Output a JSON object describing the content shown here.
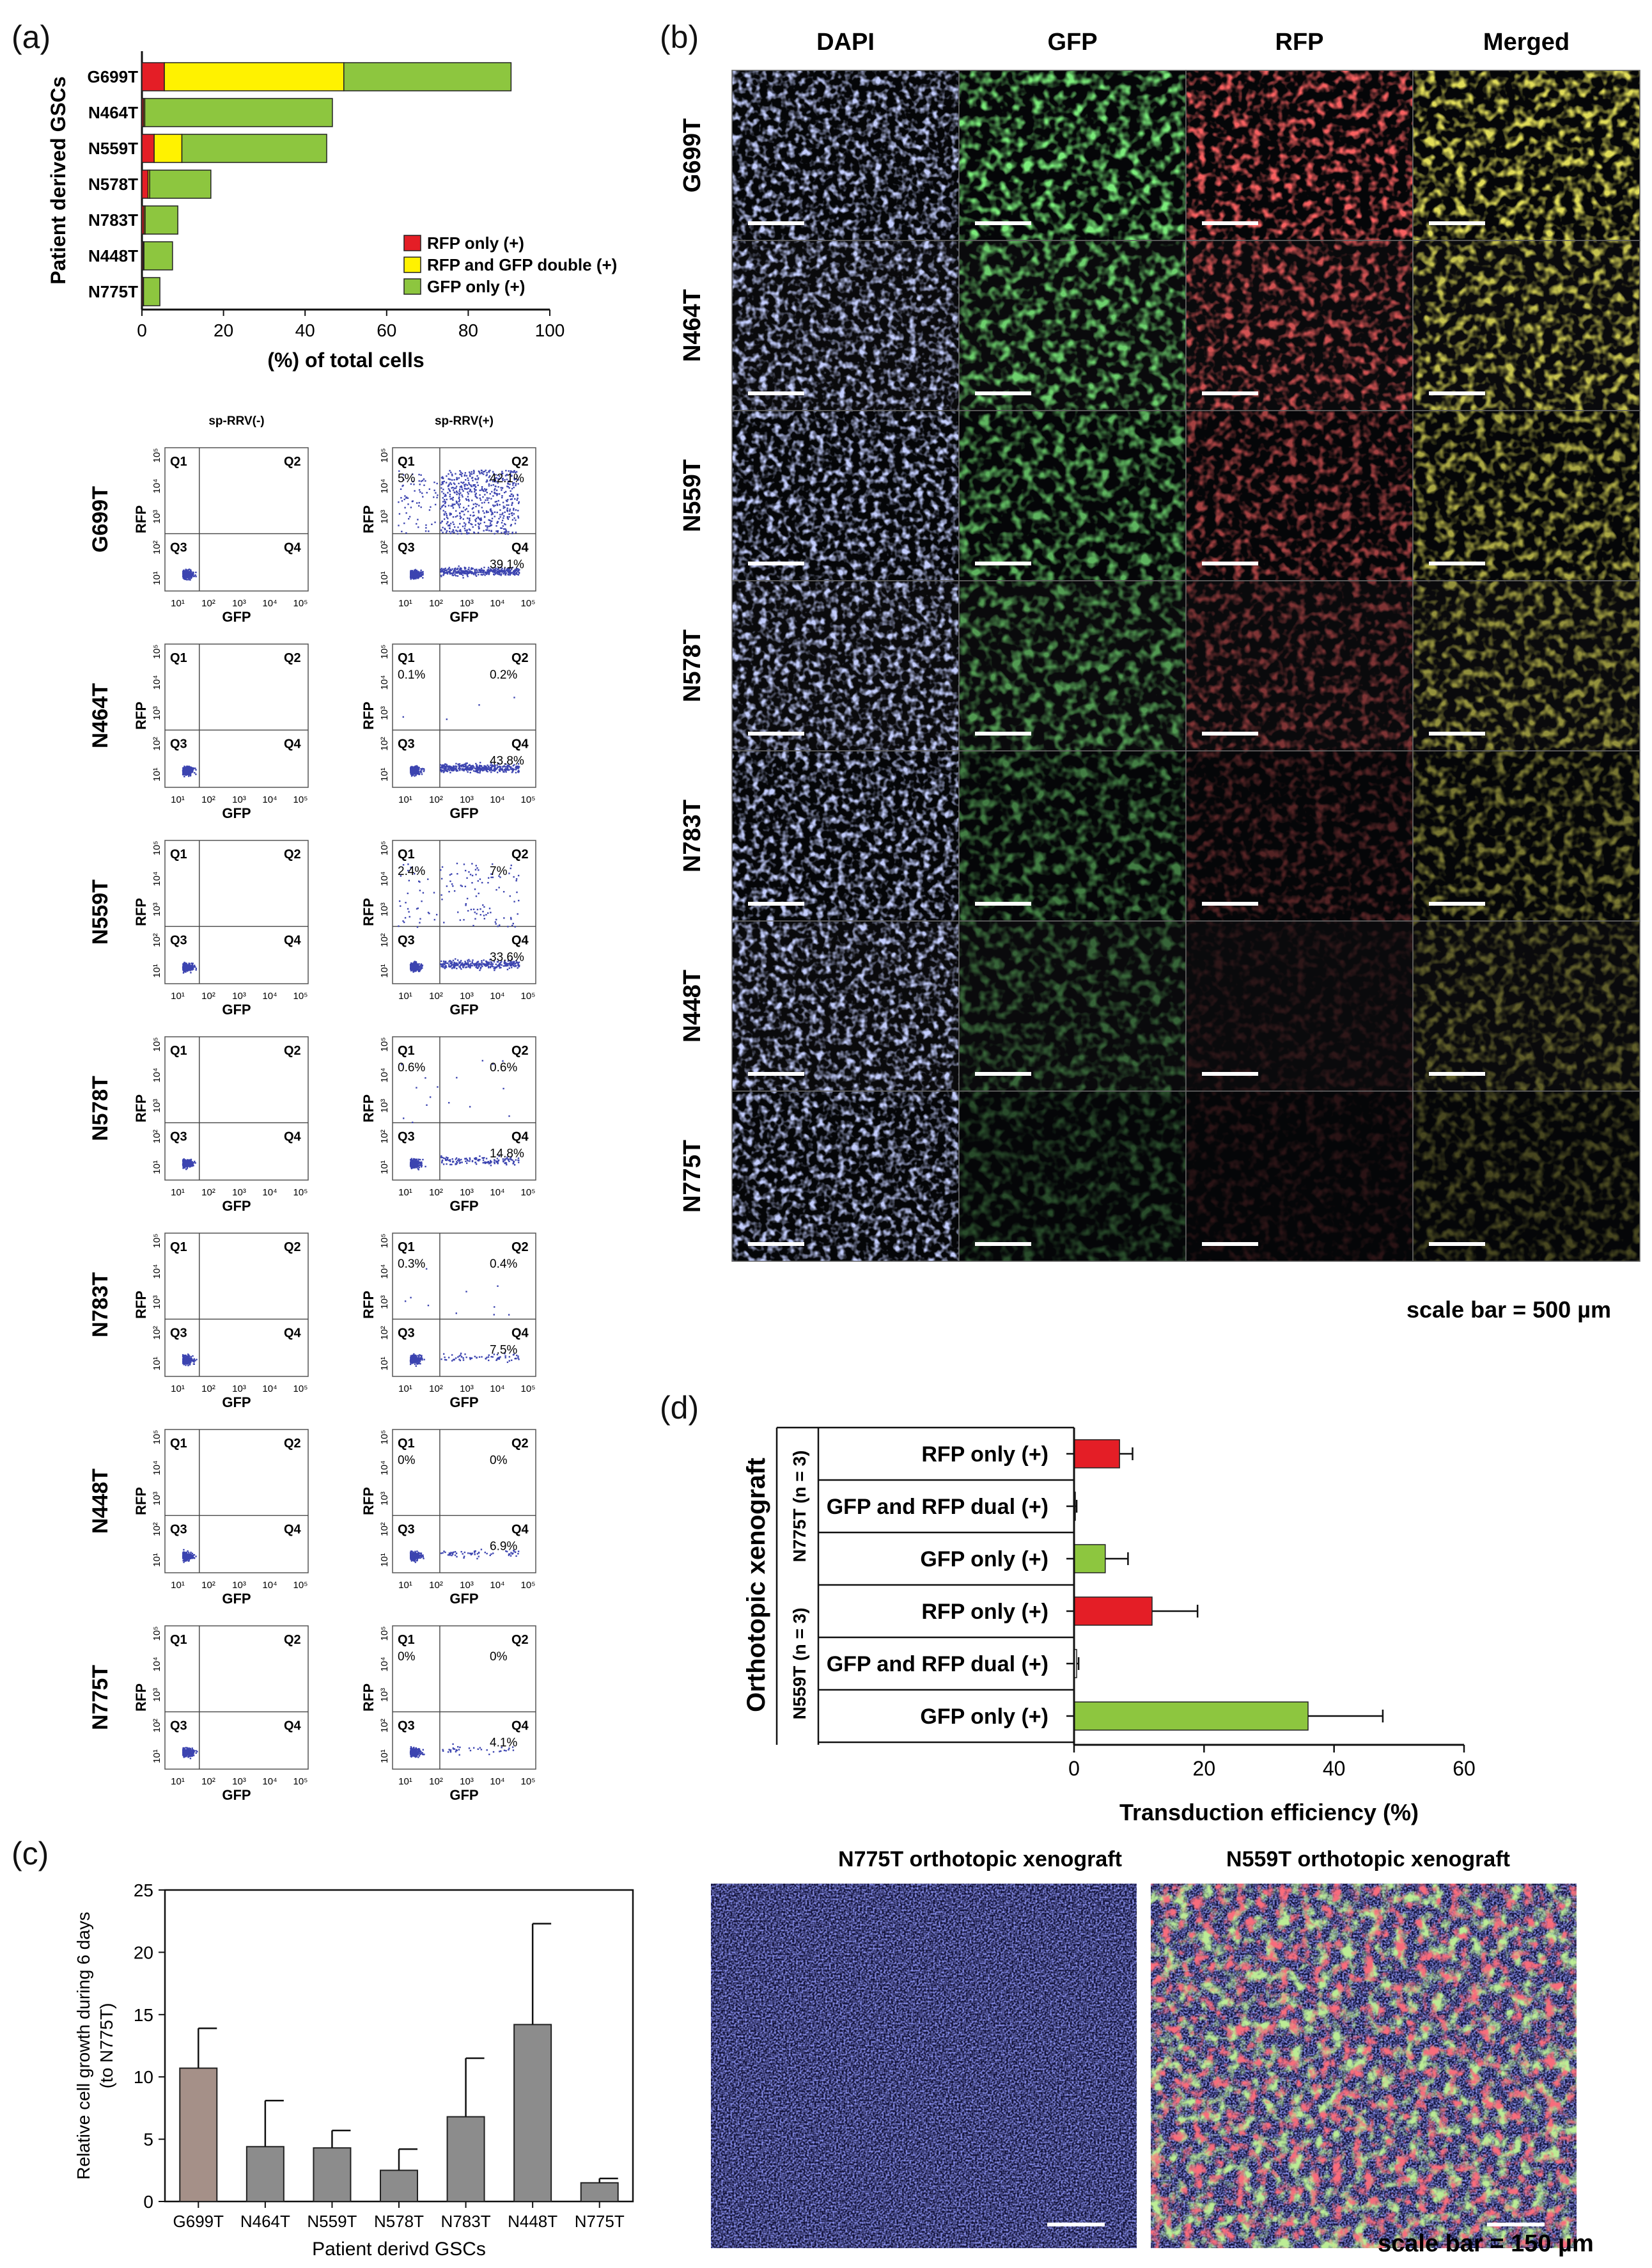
{
  "panels": {
    "a": "(a)",
    "b": "(b)",
    "c": "(c)",
    "d": "(d)"
  },
  "colors": {
    "rfp_only": "#e41e26",
    "double": "#fff200",
    "gfp_only": "#8dc63f",
    "grey_bar": "#8c8c8c",
    "g699_bar": "#a59088",
    "dot": "#3c44b0"
  },
  "chart_data": [
    {
      "type": "bar",
      "orientation": "horizontal",
      "stacked": true,
      "ylabel": "Patient derived GSCs",
      "xlabel": "(%) of total cells",
      "xlim": [
        0,
        100
      ],
      "xticks": [
        0,
        20,
        40,
        60,
        80,
        100
      ],
      "categories": [
        "G699T",
        "N464T",
        "N559T",
        "N578T",
        "N783T",
        "N448T",
        "N775T"
      ],
      "series": [
        {
          "name": "RFP only (+)",
          "values": [
            5.5,
            0.4,
            3.0,
            1.5,
            0.5,
            0.3,
            0.3
          ]
        },
        {
          "name": "RFP and GFP double  (+)",
          "values": [
            44.0,
            0.3,
            6.8,
            0.4,
            0.3,
            0.2,
            0.1
          ]
        },
        {
          "name": "GFP only (+)",
          "values": [
            41.0,
            46.0,
            35.5,
            15.0,
            8.0,
            7.0,
            4.0
          ]
        }
      ],
      "legend_position": "bottom-right"
    },
    {
      "type": "scatter",
      "subtype": "flow-cytometry-grid",
      "column_titles": [
        "sp-RRV(-)",
        "sp-RRV(+)"
      ],
      "xlabel": "GFP",
      "ylabel": "RFP",
      "axis_ticks": [
        "10¹",
        "10²",
        "10³",
        "10⁴",
        "10⁵"
      ],
      "quadrants": [
        "Q1",
        "Q2",
        "Q3",
        "Q4"
      ],
      "rows": [
        {
          "name": "G699T",
          "positive": {
            "Q1": "5%",
            "Q2": "42.1%",
            "Q3": "",
            "Q4": "39.1%"
          }
        },
        {
          "name": "N464T",
          "positive": {
            "Q1": "0.1%",
            "Q2": "0.2%",
            "Q3": "",
            "Q4": "43.8%"
          }
        },
        {
          "name": "N559T",
          "positive": {
            "Q1": "2.4%",
            "Q2": "7%",
            "Q3": "",
            "Q4": "33.6%"
          }
        },
        {
          "name": "N578T",
          "positive": {
            "Q1": "0.6%",
            "Q2": "0.6%",
            "Q3": "",
            "Q4": "14.8%"
          }
        },
        {
          "name": "N783T",
          "positive": {
            "Q1": "0.3%",
            "Q2": "0.4%",
            "Q3": "",
            "Q4": "7.5%"
          }
        },
        {
          "name": "N448T",
          "positive": {
            "Q1": "0%",
            "Q2": "0%",
            "Q3": "",
            "Q4": "6.9%"
          }
        },
        {
          "name": "N775T",
          "positive": {
            "Q1": "0%",
            "Q2": "0%",
            "Q3": "",
            "Q4": "4.1%"
          }
        }
      ]
    },
    {
      "type": "bar",
      "ylabel": "Relative cell growth during 6 days (to N775T)",
      "xlabel": "Patient derivd GSCs",
      "ylim": [
        0,
        25
      ],
      "yticks": [
        0,
        5,
        10,
        15,
        20,
        25
      ],
      "categories": [
        "G699T",
        "N464T",
        "N559T",
        "N578T",
        "N783T",
        "N448T",
        "N775T"
      ],
      "values": [
        10.7,
        4.4,
        4.3,
        2.5,
        6.8,
        14.2,
        1.5
      ],
      "errors": [
        3.2,
        3.7,
        1.4,
        1.7,
        4.7,
        8.1,
        0.35
      ]
    },
    {
      "type": "bar",
      "orientation": "horizontal",
      "ylabel": "Orthotopic xenograft",
      "xlabel": "Transduction efficiency (%)",
      "xlim": [
        0,
        60
      ],
      "xticks": [
        0,
        20,
        40,
        60
      ],
      "groups": [
        {
          "name": "N775T (n = 3)",
          "categories": [
            "RFP only (+)",
            "GFP and RFP dual (+)",
            "GFP only (+)"
          ],
          "values": [
            7,
            0.2,
            4.8
          ],
          "errors": [
            2.0,
            0.2,
            3.5
          ]
        },
        {
          "name": "N559T (n = 3)",
          "categories": [
            "RFP only (+)",
            "GFP and RFP dual (+)",
            "GFP only (+)"
          ],
          "values": [
            12,
            0.4,
            36
          ],
          "errors": [
            7.0,
            0.3,
            11.5
          ]
        }
      ]
    }
  ],
  "micro_b": {
    "columns": [
      "DAPI",
      "GFP",
      "RFP",
      "Merged"
    ],
    "rows": [
      "G699T",
      "N464T",
      "N559T",
      "N578T",
      "N783T",
      "N448T",
      "N775T"
    ],
    "scale_text": "scale bar = 500 µm"
  },
  "micro_x": {
    "titles": [
      "N775T orthotopic xenograft",
      "N559T orthotopic xenograft"
    ],
    "scale_text": "scale bar = 150 µm"
  }
}
